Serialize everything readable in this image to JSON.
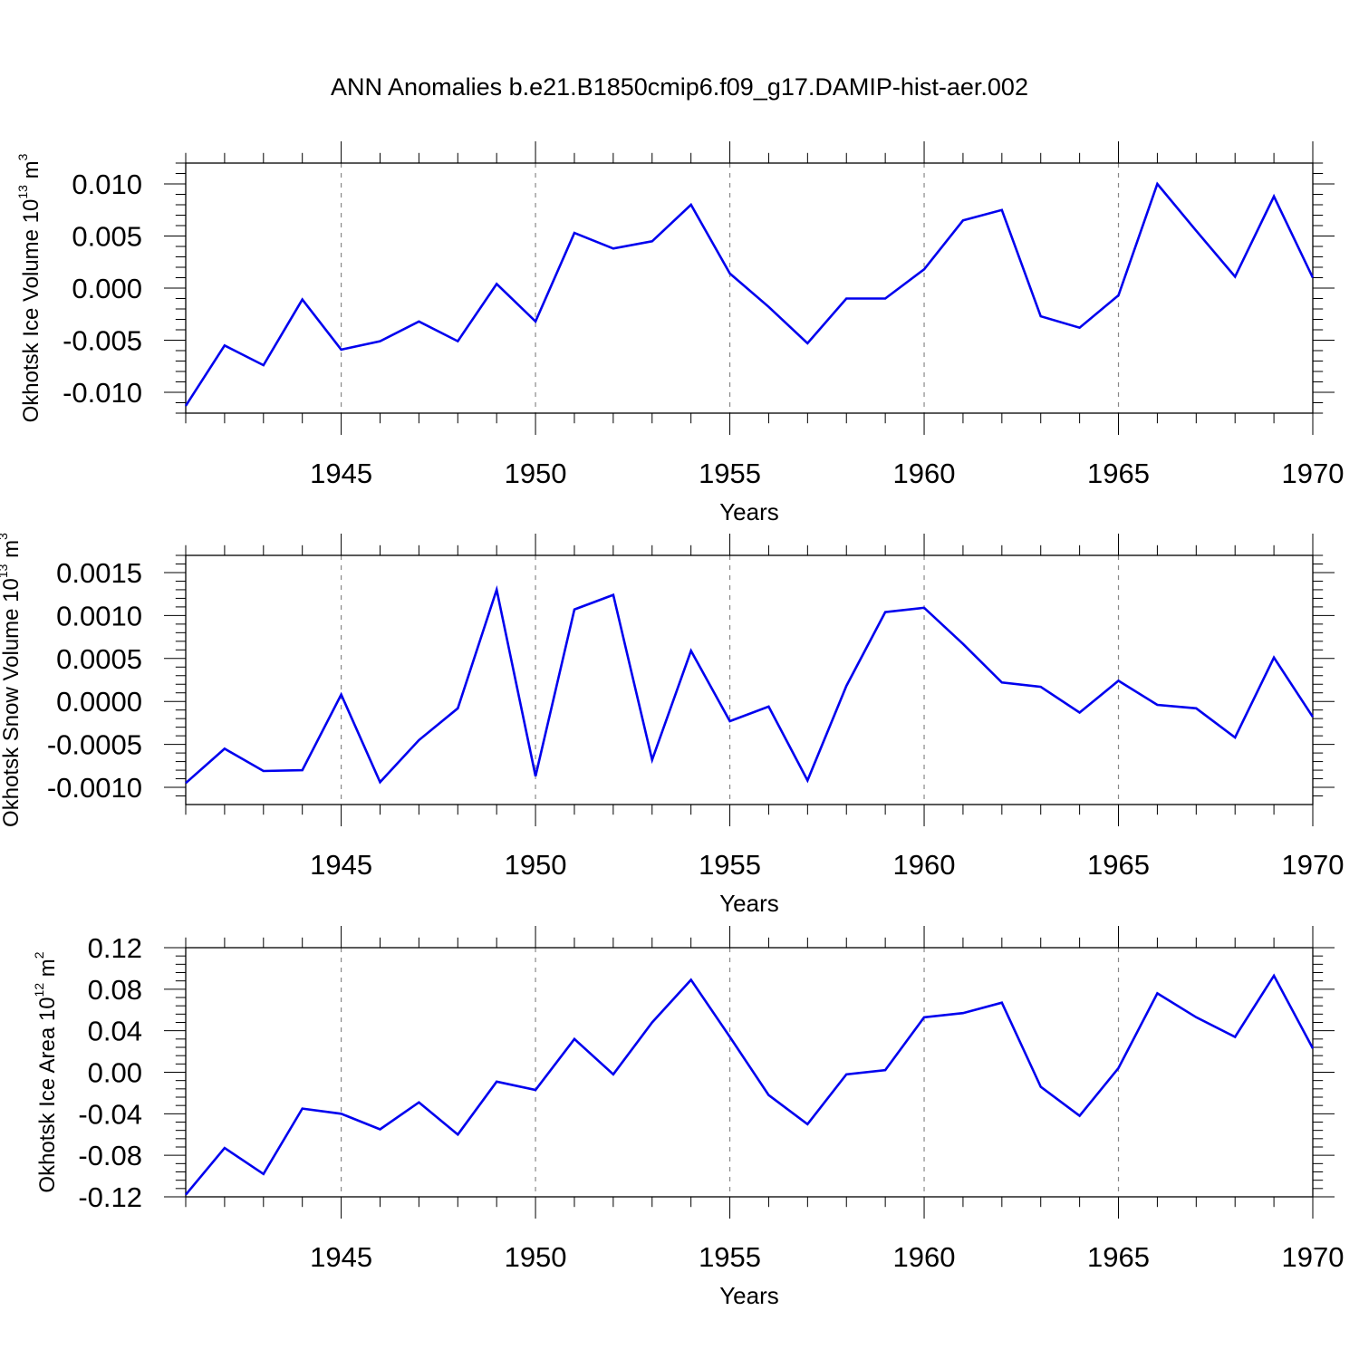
{
  "figure": {
    "title": "ANN Anomalies b.e21.B1850cmip6.f09_g17.DAMIP-hist-aer.002"
  },
  "chart_data": [
    {
      "type": "line",
      "name": "ice-volume",
      "xlabel": "Years",
      "ylabel": {
        "main": "Okhotsk Ice Volume 10",
        "exp": "13",
        "unit": " m",
        "unit_exp": "3"
      },
      "xlim": [
        1941,
        1970
      ],
      "ylim": [
        -0.012,
        0.012
      ],
      "x_ticks": [
        1945,
        1950,
        1955,
        1960,
        1965,
        1970
      ],
      "y_ticks": [
        -0.01,
        -0.005,
        0.0,
        0.005,
        0.01
      ],
      "y_tick_labels": [
        "-0.010",
        "-0.005",
        "0.000",
        "0.005",
        "0.010"
      ],
      "grid": "vertical dashed at major x ticks",
      "line_color": "#0000ee",
      "x": [
        1941,
        1942,
        1943,
        1944,
        1945,
        1946,
        1947,
        1948,
        1949,
        1950,
        1951,
        1952,
        1953,
        1954,
        1955,
        1956,
        1957,
        1958,
        1959,
        1960,
        1961,
        1962,
        1963,
        1964,
        1965,
        1966,
        1967,
        1968,
        1969,
        1970
      ],
      "values": [
        -0.0113,
        -0.0055,
        -0.0074,
        -0.0011,
        -0.0059,
        -0.0051,
        -0.0032,
        -0.0051,
        0.0004,
        -0.0032,
        0.0053,
        0.0038,
        0.0045,
        0.008,
        0.0014,
        -0.0018,
        -0.0053,
        -0.001,
        -0.001,
        0.0018,
        0.0065,
        0.0075,
        -0.0027,
        -0.0038,
        -0.0007,
        0.01,
        0.0055,
        0.0011,
        0.0088,
        0.001
      ]
    },
    {
      "type": "line",
      "name": "snow-volume",
      "xlabel": "Years",
      "ylabel": {
        "main": "Okhotsk Snow Volume 10",
        "exp": "13",
        "unit": " m",
        "unit_exp": "3"
      },
      "xlim": [
        1941,
        1970
      ],
      "ylim": [
        -0.0012,
        0.0017
      ],
      "x_ticks": [
        1945,
        1950,
        1955,
        1960,
        1965,
        1970
      ],
      "y_ticks": [
        -0.001,
        -0.0005,
        0.0,
        0.0005,
        0.001,
        0.0015
      ],
      "y_tick_labels": [
        "-0.0010",
        "-0.0005",
        "0.0000",
        "0.0005",
        "0.0010",
        "0.0015"
      ],
      "grid": "vertical dashed at major x ticks",
      "line_color": "#0000ee",
      "x": [
        1941,
        1942,
        1943,
        1944,
        1945,
        1946,
        1947,
        1948,
        1949,
        1950,
        1951,
        1952,
        1953,
        1954,
        1955,
        1956,
        1957,
        1958,
        1959,
        1960,
        1961,
        1962,
        1963,
        1964,
        1965,
        1966,
        1967,
        1968,
        1969,
        1970
      ],
      "values": [
        -0.00095,
        -0.00055,
        -0.00081,
        -0.0008,
        8e-05,
        -0.00094,
        -0.00045,
        -8e-05,
        0.0013,
        -0.00087,
        0.00107,
        0.00124,
        -0.00068,
        0.00059,
        -0.00023,
        -6e-05,
        -0.00092,
        0.00018,
        0.00104,
        0.00109,
        0.00067,
        0.00022,
        0.00017,
        -0.00013,
        0.00024,
        -4e-05,
        -8e-05,
        -0.00042,
        0.00051,
        -0.00018
      ]
    },
    {
      "type": "line",
      "name": "ice-area",
      "xlabel": "Years",
      "ylabel": {
        "main": "Okhotsk Ice Area 10",
        "exp": "12",
        "unit": " m",
        "unit_exp": "2"
      },
      "xlim": [
        1941,
        1970
      ],
      "ylim": [
        -0.12,
        0.12
      ],
      "x_ticks": [
        1945,
        1950,
        1955,
        1960,
        1965,
        1970
      ],
      "y_ticks": [
        -0.12,
        -0.08,
        -0.04,
        0.0,
        0.04,
        0.08,
        0.12
      ],
      "y_tick_labels": [
        "-0.12",
        "-0.08",
        "-0.04",
        "0.00",
        "0.04",
        "0.08",
        "0.12"
      ],
      "grid": "vertical dashed at major x ticks",
      "line_color": "#0000ee",
      "x": [
        1941,
        1942,
        1943,
        1944,
        1945,
        1946,
        1947,
        1948,
        1949,
        1950,
        1951,
        1952,
        1953,
        1954,
        1955,
        1956,
        1957,
        1958,
        1959,
        1960,
        1961,
        1962,
        1963,
        1964,
        1965,
        1966,
        1967,
        1968,
        1969,
        1970
      ],
      "values": [
        -0.118,
        -0.073,
        -0.098,
        -0.035,
        -0.04,
        -0.055,
        -0.029,
        -0.06,
        -0.009,
        -0.017,
        0.032,
        -0.002,
        0.048,
        0.089,
        0.034,
        -0.022,
        -0.05,
        -0.002,
        0.002,
        0.053,
        0.057,
        0.067,
        -0.014,
        -0.042,
        0.004,
        0.076,
        0.053,
        0.034,
        0.093,
        0.023
      ]
    }
  ]
}
